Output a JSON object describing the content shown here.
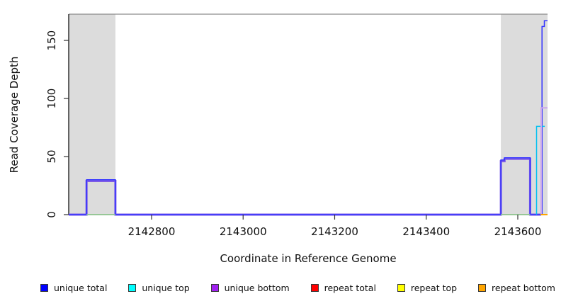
{
  "chart_data": {
    "type": "line",
    "title": "",
    "xlabel": "Coordinate in Reference Genome",
    "ylabel": "Read Coverage Depth",
    "xlim": [
      2142619,
      2143665
    ],
    "ylim": [
      0,
      172.6
    ],
    "x_ticks": [
      2142800,
      2143000,
      2143200,
      2143400,
      2143600
    ],
    "y_ticks": [
      0,
      50,
      100,
      150
    ],
    "grid": false,
    "legend_position": "bottom",
    "frame": {
      "top_border_color": "#8c8c8c",
      "axis_color": "#000000",
      "tick_color": "#333333"
    },
    "highlight_regions": [
      {
        "x0": 2142619,
        "x1": 2142721,
        "color": "#dcdcdc"
      },
      {
        "x0": 2143563,
        "x1": 2143665,
        "color": "#dcdcdc"
      }
    ],
    "series": [
      {
        "name": "unique bottom",
        "color": "#7d5ce6",
        "width": 3,
        "paths": [
          [
            [
              2142619,
              0
            ],
            [
              2142658,
              0
            ],
            [
              2142658,
              29
            ],
            [
              2142721,
              29
            ],
            [
              2142721,
              0
            ],
            [
              2143563,
              0
            ],
            [
              2143563,
              46
            ],
            [
              2143571,
              46
            ],
            [
              2143571,
              48
            ],
            [
              2143627,
              48
            ],
            [
              2143627,
              0
            ],
            [
              2143651,
              0
            ]
          ]
        ]
      },
      {
        "name": "unique total",
        "color": "#3434ff",
        "width": 1.5,
        "paths": [
          [
            [
              2142619,
              0
            ],
            [
              2142658,
              0
            ],
            [
              2142658,
              30
            ],
            [
              2142721,
              30
            ],
            [
              2142721,
              0
            ],
            [
              2143563,
              0
            ],
            [
              2143563,
              47
            ],
            [
              2143571,
              47
            ],
            [
              2143571,
              49
            ],
            [
              2143627,
              49
            ],
            [
              2143627,
              0
            ],
            [
              2143653,
              0
            ],
            [
              2143653,
              162
            ],
            [
              2143658,
              162
            ],
            [
              2143658,
              167
            ],
            [
              2143665,
              167
            ]
          ]
        ]
      },
      {
        "name": "zero coverage marker",
        "color": "#90d090",
        "width": 1.5,
        "paths": [
          [
            [
              2142658,
              0
            ],
            [
              2142721,
              0
            ]
          ],
          [
            [
              2143563,
              0
            ],
            [
              2143627,
              0
            ]
          ]
        ]
      },
      {
        "name": "unique top",
        "color": "#00c0f0",
        "width": 1.5,
        "paths": [
          [
            [
              2143641,
              0
            ],
            [
              2143641,
              76
            ],
            [
              2143659,
              76
            ]
          ]
        ]
      },
      {
        "name": "unique bottom far right",
        "color": "#c9a6ee",
        "width": 2,
        "paths": [
          [
            [
              2143651,
              0
            ],
            [
              2143651,
              92
            ],
            [
              2143665,
              92
            ]
          ]
        ]
      },
      {
        "name": "repeat bottom",
        "color": "#ffa500",
        "width": 2,
        "paths": [
          [
            [
              2143650,
              0
            ],
            [
              2143665,
              0
            ]
          ]
        ]
      }
    ],
    "legend": [
      {
        "label": "unique total",
        "color": "#0000ff"
      },
      {
        "label": "unique top",
        "color": "#00ffff"
      },
      {
        "label": "unique bottom",
        "color": "#a020f0"
      },
      {
        "label": "repeat total",
        "color": "#ff0000"
      },
      {
        "label": "repeat top",
        "color": "#ffff00"
      },
      {
        "label": "repeat bottom",
        "color": "#ffa500"
      }
    ]
  }
}
